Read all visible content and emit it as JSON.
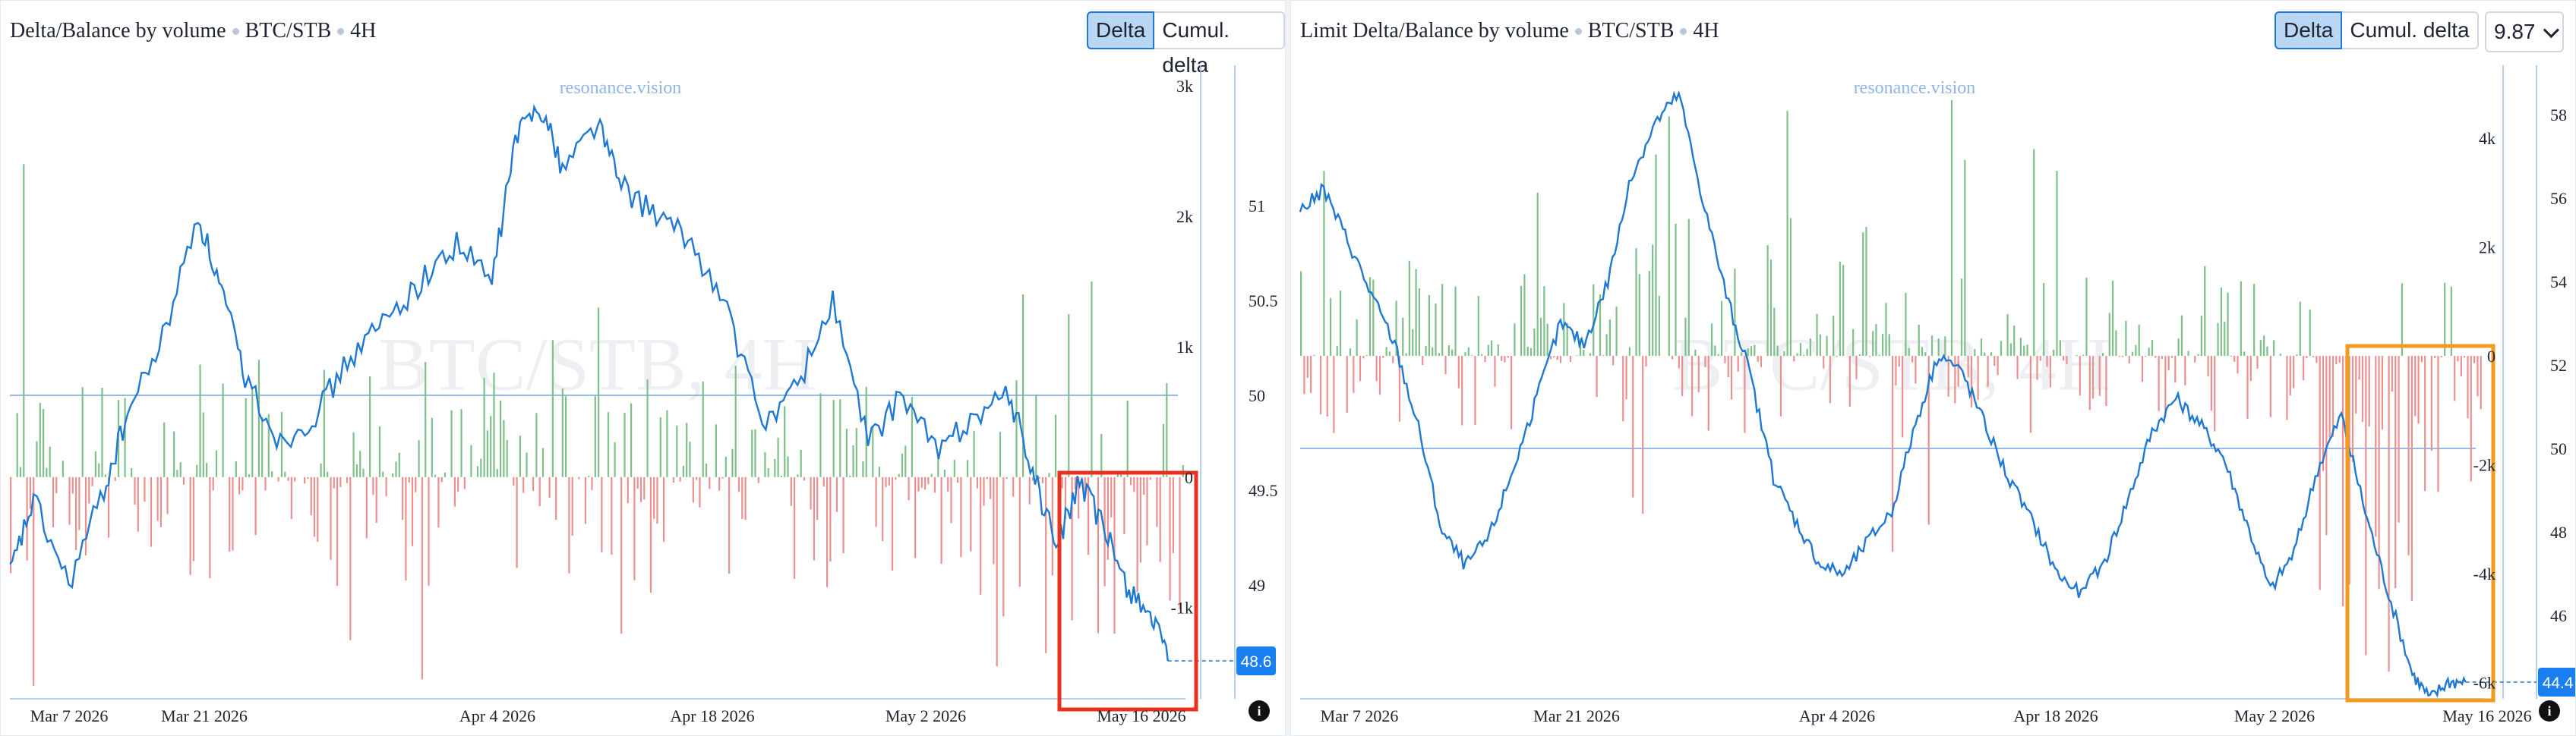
{
  "panels": [
    {
      "id": "left",
      "title": "Delta/Balance by volume",
      "pair": "BTC/STB",
      "timeframe": "4H",
      "tabs": [
        {
          "label": "Delta",
          "active": true
        },
        {
          "label": "Cumul. delta",
          "active": false
        }
      ],
      "watermark": "BTC/STB, 4H",
      "site": "resonance.vision",
      "price_badge": "48.6",
      "highlight_color": "#e8311f"
    },
    {
      "id": "right",
      "title": "Limit Delta/Balance by volume",
      "pair": "BTC/STB",
      "timeframe": "4H",
      "tabs": [
        {
          "label": "Delta",
          "active": true
        },
        {
          "label": "Cumul. delta",
          "active": false
        }
      ],
      "dropdown": "9.87",
      "watermark": "BTC/STB, 4H",
      "site": "resonance.vision",
      "price_badge": "44.4",
      "highlight_color": "#f39a1f"
    }
  ],
  "colors": {
    "up": "#7fbf8a",
    "down": "#eb8f8f",
    "line": "#1f78d1",
    "badge": "#1a7ff0"
  },
  "chart_data": [
    {
      "type": "bar",
      "title": "Delta/Balance by volume",
      "x_ticks": [
        "Mar 7 2026",
        "Mar 21 2026",
        "Apr 4 2026",
        "Apr 18 2026",
        "May 2 2026",
        "May 16 2026"
      ],
      "delta_axis": {
        "ticks": [
          "3k",
          "2k",
          "1k",
          "0",
          "-1k"
        ],
        "range": [
          -1700,
          3100
        ]
      },
      "price_axis": {
        "ticks": [
          "51",
          "50.5",
          "50",
          "49.5",
          "49"
        ],
        "range": [
          48.4,
          51.7
        ]
      },
      "series": [
        {
          "kind": "delta_bars",
          "spikes_up": [
            [
              0.01,
              2400
            ],
            [
              0.5,
              1300
            ],
            [
              0.46,
              1050
            ],
            [
              0.92,
              1500
            ],
            [
              0.9,
              1250
            ],
            [
              0.86,
              1400
            ],
            [
              0.21,
              900
            ],
            [
              0.41,
              800
            ]
          ],
          "spikes_down": [
            [
              0.02,
              -1600
            ],
            [
              0.35,
              -1550
            ],
            [
              0.29,
              -1250
            ],
            [
              0.52,
              -1200
            ],
            [
              0.84,
              -1450
            ],
            [
              0.88,
              -1350
            ],
            [
              0.94,
              -1200
            ]
          ]
        },
        {
          "kind": "price_line",
          "points": [
            [
              0,
              49.05
            ],
            [
              0.02,
              49.45
            ],
            [
              0.05,
              49.0
            ],
            [
              0.08,
              49.5
            ],
            [
              0.1,
              49.9
            ],
            [
              0.13,
              50.3
            ],
            [
              0.16,
              50.95
            ],
            [
              0.18,
              50.55
            ],
            [
              0.2,
              50.1
            ],
            [
              0.23,
              49.75
            ],
            [
              0.26,
              49.9
            ],
            [
              0.29,
              50.2
            ],
            [
              0.32,
              50.4
            ],
            [
              0.35,
              50.6
            ],
            [
              0.38,
              50.8
            ],
            [
              0.41,
              50.6
            ],
            [
              0.43,
              51.35
            ],
            [
              0.45,
              51.55
            ],
            [
              0.47,
              51.2
            ],
            [
              0.5,
              51.45
            ],
            [
              0.52,
              51.1
            ],
            [
              0.55,
              50.95
            ],
            [
              0.58,
              50.8
            ],
            [
              0.61,
              50.45
            ],
            [
              0.64,
              49.85
            ],
            [
              0.67,
              50.05
            ],
            [
              0.7,
              50.5
            ],
            [
              0.73,
              49.75
            ],
            [
              0.76,
              50.0
            ],
            [
              0.79,
              49.7
            ],
            [
              0.82,
              49.9
            ],
            [
              0.85,
              50.0
            ],
            [
              0.87,
              49.6
            ],
            [
              0.89,
              49.2
            ],
            [
              0.91,
              49.55
            ],
            [
              0.93,
              49.3
            ],
            [
              0.95,
              49.0
            ],
            [
              0.97,
              48.85
            ],
            [
              0.985,
              48.6
            ]
          ]
        }
      ],
      "price_reference": 50.0,
      "last_price": 48.6
    },
    {
      "type": "bar",
      "title": "Limit Delta/Balance by volume",
      "x_ticks": [
        "Mar 7 2026",
        "Mar 21 2026",
        "Apr 4 2026",
        "Apr 18 2026",
        "May 2 2026",
        "May 16 2026"
      ],
      "delta_axis": {
        "ticks": [
          "4k",
          "2k",
          "0",
          "-2k",
          "-4k",
          "-6k"
        ],
        "range": [
          -6300,
          5200
        ]
      },
      "price_axis": {
        "ticks": [
          "58",
          "56",
          "54",
          "52",
          "50",
          "48",
          "46"
        ],
        "range": [
          44.0,
          59.0
        ]
      },
      "series": [
        {
          "kind": "delta_bars",
          "spikes_up": [
            [
              0.31,
              4400
            ],
            [
              0.3,
              3700
            ],
            [
              0.55,
              4700
            ],
            [
              0.56,
              3600
            ],
            [
              0.41,
              4500
            ],
            [
              0.2,
              3000
            ],
            [
              0.64,
              3400
            ],
            [
              0.62,
              3800
            ],
            [
              0.02,
              3400
            ]
          ],
          "spikes_down": [
            [
              0.28,
              -2600
            ],
            [
              0.29,
              -2900
            ],
            [
              0.5,
              -3600
            ],
            [
              0.53,
              -3100
            ],
            [
              0.88,
              -4600
            ],
            [
              0.9,
              -5500
            ],
            [
              0.92,
              -5800
            ],
            [
              0.94,
              -4500
            ],
            [
              0.86,
              -4300
            ]
          ]
        },
        {
          "kind": "price_line",
          "points": [
            [
              0,
              55.7
            ],
            [
              0.02,
              56.2
            ],
            [
              0.04,
              55.0
            ],
            [
              0.06,
              53.7
            ],
            [
              0.08,
              52.5
            ],
            [
              0.1,
              50.5
            ],
            [
              0.12,
              48.0
            ],
            [
              0.14,
              47.2
            ],
            [
              0.16,
              47.9
            ],
            [
              0.18,
              49.5
            ],
            [
              0.2,
              51.2
            ],
            [
              0.22,
              53.0
            ],
            [
              0.24,
              52.5
            ],
            [
              0.26,
              54.0
            ],
            [
              0.28,
              56.5
            ],
            [
              0.3,
              57.8
            ],
            [
              0.32,
              58.5
            ],
            [
              0.34,
              56.0
            ],
            [
              0.36,
              53.7
            ],
            [
              0.38,
              51.8
            ],
            [
              0.4,
              49.3
            ],
            [
              0.42,
              48.2
            ],
            [
              0.44,
              47.2
            ],
            [
              0.46,
              47.0
            ],
            [
              0.48,
              47.8
            ],
            [
              0.5,
              48.5
            ],
            [
              0.52,
              50.6
            ],
            [
              0.54,
              52.3
            ],
            [
              0.56,
              51.8
            ],
            [
              0.58,
              50.5
            ],
            [
              0.6,
              49.2
            ],
            [
              0.62,
              48.2
            ],
            [
              0.64,
              47.0
            ],
            [
              0.66,
              46.5
            ],
            [
              0.68,
              47.3
            ],
            [
              0.7,
              48.8
            ],
            [
              0.72,
              50.4
            ],
            [
              0.74,
              51.2
            ],
            [
              0.76,
              50.6
            ],
            [
              0.78,
              49.8
            ],
            [
              0.8,
              48.2
            ],
            [
              0.82,
              46.6
            ],
            [
              0.84,
              47.5
            ],
            [
              0.86,
              49.5
            ],
            [
              0.88,
              50.8
            ],
            [
              0.9,
              48.5
            ],
            [
              0.92,
              46.5
            ],
            [
              0.94,
              44.6
            ],
            [
              0.955,
              44.0
            ],
            [
              0.97,
              44.4
            ],
            [
              0.985,
              44.4
            ]
          ]
        }
      ],
      "price_reference": 50.0,
      "last_price": 44.4
    }
  ]
}
